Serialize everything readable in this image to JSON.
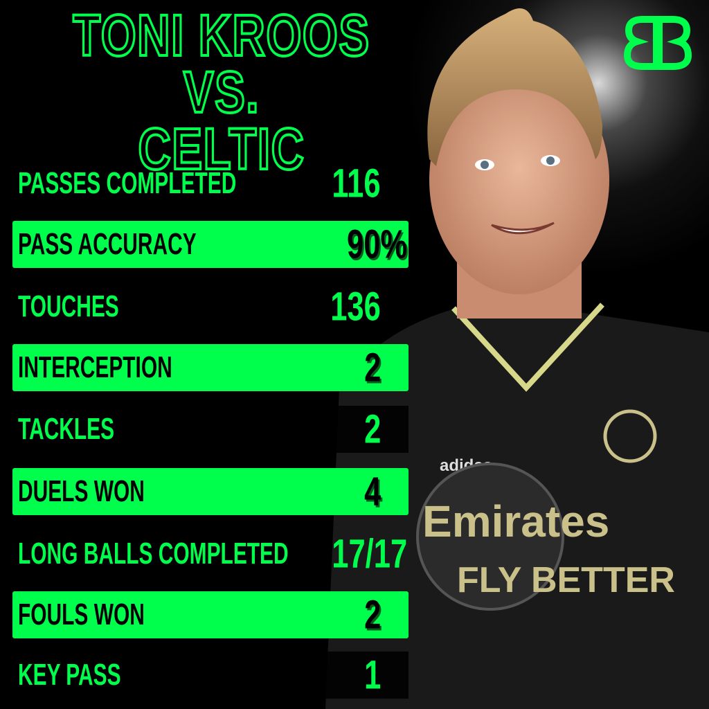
{
  "title": {
    "line1": "TONI KROOS VS.",
    "line2": "CELTIC"
  },
  "logo": {
    "name": "bb-logo",
    "text": "BB"
  },
  "colors": {
    "accent": "#00ff4c",
    "background": "#000000"
  },
  "stats": [
    {
      "label": "PASSES COMPLETED",
      "value": "116",
      "highlighted": false
    },
    {
      "label": "PASS ACCURACY",
      "value": "90%",
      "highlighted": true
    },
    {
      "label": "TOUCHES",
      "value": "136",
      "highlighted": false
    },
    {
      "label": "INTERCEPTION",
      "value": "2",
      "highlighted": true
    },
    {
      "label": "TACKLES",
      "value": "2",
      "highlighted": false
    },
    {
      "label": "DUELS WON",
      "value": "4",
      "highlighted": true
    },
    {
      "label": "LONG BALLS COMPLETED",
      "value": "17/17",
      "highlighted": false
    },
    {
      "label": "FOULS WON",
      "value": "2",
      "highlighted": true
    },
    {
      "label": "KEY PASS",
      "value": "1",
      "highlighted": false
    }
  ]
}
